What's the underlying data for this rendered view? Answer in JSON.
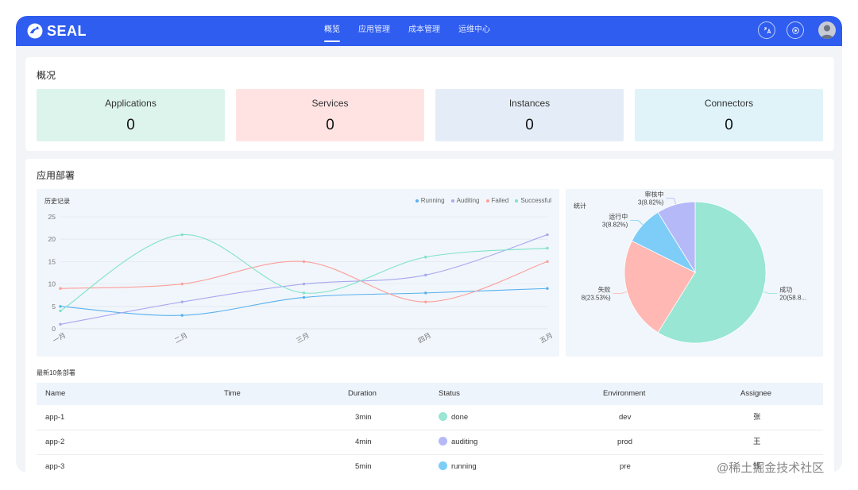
{
  "app": {
    "logo": "SEAL"
  },
  "nav": [
    {
      "label": "概览",
      "active": true
    },
    {
      "label": "应用管理",
      "active": false
    },
    {
      "label": "成本管理",
      "active": false
    },
    {
      "label": "运维中心",
      "active": false
    }
  ],
  "header_icons": [
    "translate-icon",
    "target-icon",
    "user-avatar"
  ],
  "overview": {
    "title": "概况",
    "stats": [
      {
        "label": "Applications",
        "value": "0",
        "color": "#dcf4ec"
      },
      {
        "label": "Services",
        "value": "0",
        "color": "#ffe3e3"
      },
      {
        "label": "Instances",
        "value": "0",
        "color": "#e4edf7"
      },
      {
        "label": "Connectors",
        "value": "0",
        "color": "#dff3f9"
      }
    ]
  },
  "deploy": {
    "title": "应用部署",
    "history_title": "历史记录",
    "stats_title": "统计",
    "table_title": "最新10条部署"
  },
  "chart_data": [
    {
      "type": "line",
      "title": "历史记录",
      "categories": [
        "一月",
        "二月",
        "三月",
        "四月",
        "五月"
      ],
      "ylim": [
        0,
        25
      ],
      "yticks": [
        "0",
        "5",
        "10",
        "15",
        "20",
        "25"
      ],
      "grid": true,
      "legend": "top-right",
      "series": [
        {
          "name": "Running",
          "color": "#5ab1ef",
          "values": [
            5,
            3,
            7,
            8,
            9
          ]
        },
        {
          "name": "Auditing",
          "color": "#a8a7f0",
          "values": [
            1,
            6,
            10,
            12,
            21
          ]
        },
        {
          "name": "Failed",
          "color": "#fd9e9a",
          "values": [
            9,
            10,
            15,
            6,
            15
          ]
        },
        {
          "name": "Successful",
          "color": "#7fe3c8",
          "values": [
            4,
            21,
            8,
            16,
            18
          ]
        }
      ]
    },
    {
      "type": "pie",
      "title": "统计",
      "slices": [
        {
          "name": "成功",
          "value": 20,
          "label": "20(58.8...",
          "color": "#98e6d3"
        },
        {
          "name": "失败",
          "value": 8,
          "label": "8(23.53%)",
          "color": "#ffb8b3"
        },
        {
          "name": "运行中",
          "value": 3,
          "label": "3(8.82%)",
          "color": "#7dcdf8"
        },
        {
          "name": "审核中",
          "value": 3,
          "label": "3(8.82%)",
          "color": "#b6b9f7"
        }
      ]
    }
  ],
  "table": {
    "columns": [
      "Name",
      "Time",
      "Duration",
      "Status",
      "Environment",
      "Assignee"
    ],
    "rows": [
      {
        "name": "app-1",
        "time": "",
        "duration": "3min",
        "status": "done",
        "status_color": "#98e6d3",
        "environment": "dev",
        "assignee": "张"
      },
      {
        "name": "app-2",
        "time": "",
        "duration": "4min",
        "status": "auditing",
        "status_color": "#b6b9f7",
        "environment": "prod",
        "assignee": "王"
      },
      {
        "name": "app-3",
        "time": "",
        "duration": "5min",
        "status": "running",
        "status_color": "#7dcdf8",
        "environment": "pre",
        "assignee": "钱"
      }
    ]
  },
  "watermark": "@稀土掘金技术社区"
}
